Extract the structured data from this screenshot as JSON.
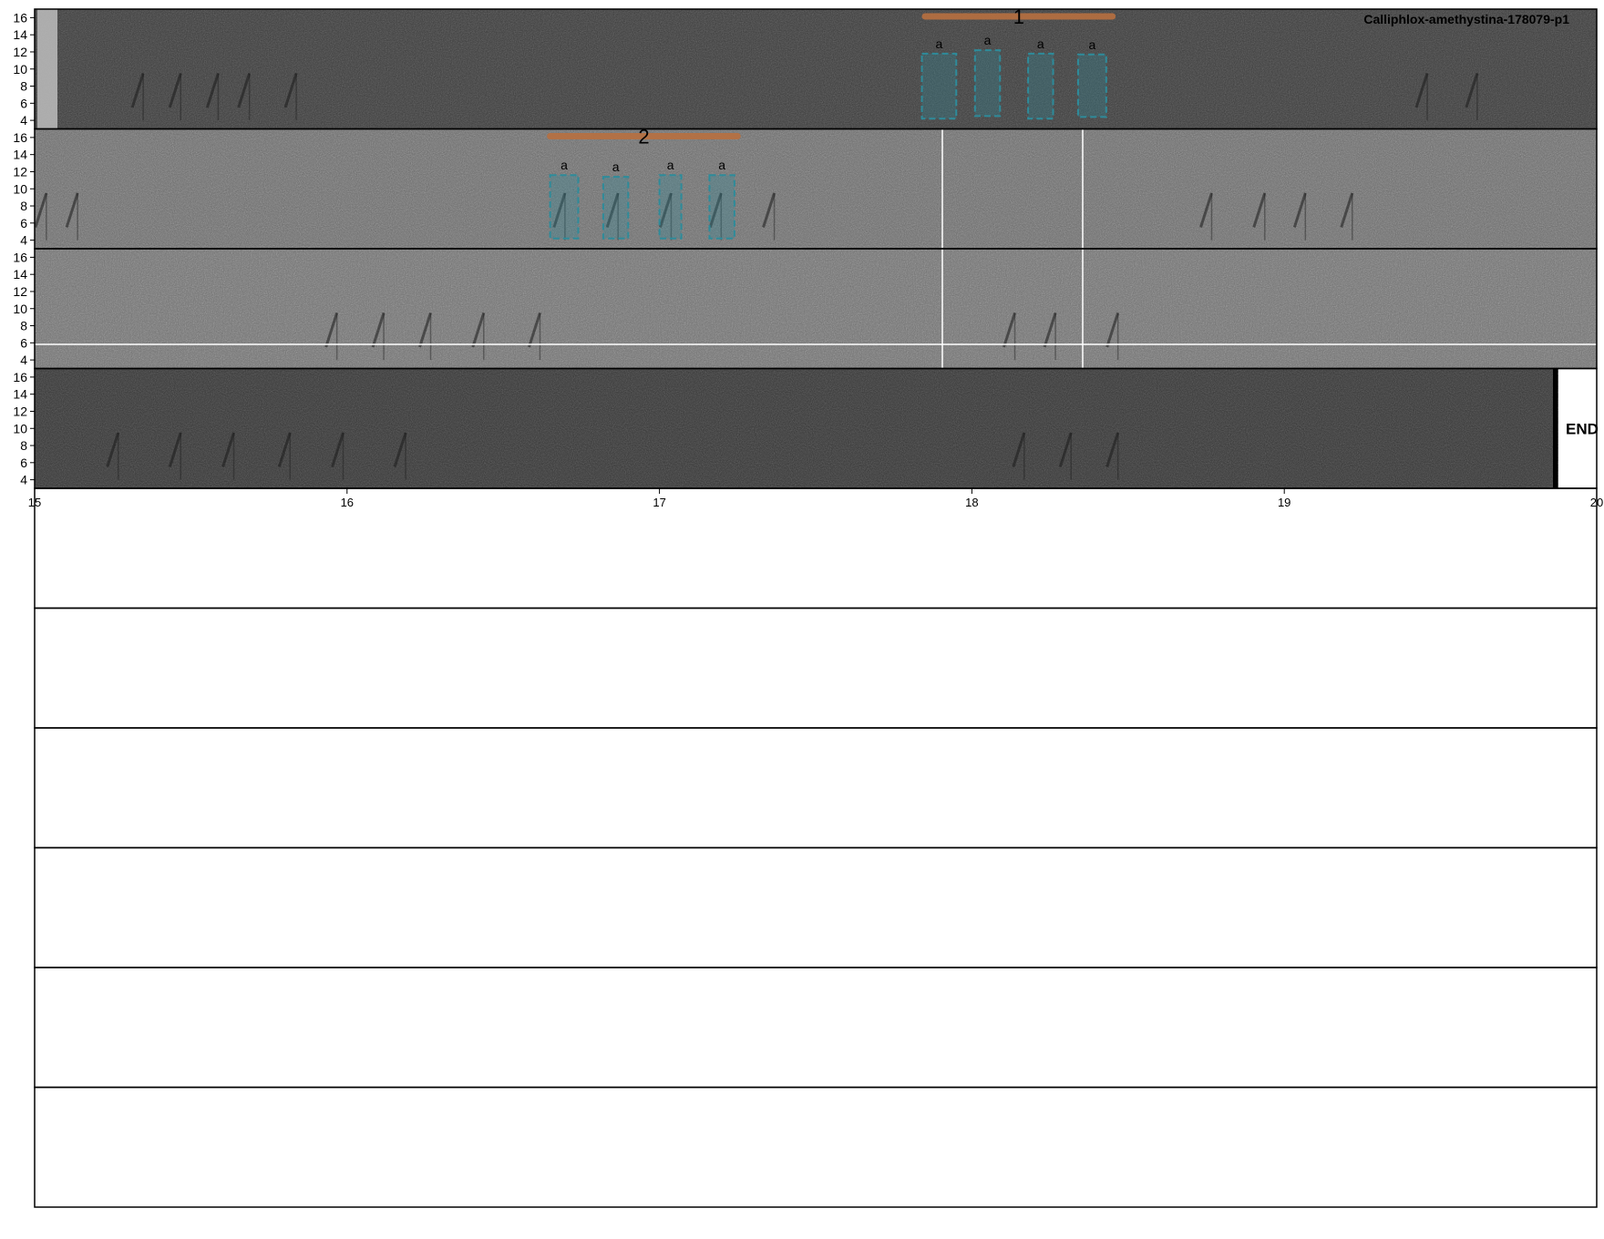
{
  "chart_data": {
    "type": "spectrogram",
    "title": "Calliphlox-amethystina-178079-p1",
    "end_label": "END",
    "xlim": [
      15,
      20
    ],
    "x_ticks": [
      "15",
      "16",
      "17",
      "18",
      "19",
      "20"
    ],
    "ylim": [
      3,
      17
    ],
    "y_ticks": [
      "16",
      "14",
      "12",
      "10",
      "8",
      "6",
      "4"
    ],
    "panel_count": 10,
    "filled_panels": 4,
    "annotations": [
      {
        "label": "1",
        "panel": 1,
        "x_start": 17.85,
        "x_end": 18.45,
        "syllables": [
          {
            "label": "a",
            "x_start": 17.84,
            "x_end": 17.95,
            "y_start": 4.2,
            "y_end": 11.8
          },
          {
            "label": "a",
            "x_start": 18.01,
            "x_end": 18.09,
            "y_start": 4.5,
            "y_end": 12.2
          },
          {
            "label": "a",
            "x_start": 18.18,
            "x_end": 18.26,
            "y_start": 4.2,
            "y_end": 11.8
          },
          {
            "label": "a",
            "x_start": 18.34,
            "x_end": 18.43,
            "y_start": 4.4,
            "y_end": 11.7
          }
        ]
      },
      {
        "label": "2",
        "panel": 2,
        "x_start": 16.65,
        "x_end": 17.25,
        "syllables": [
          {
            "label": "a",
            "x_start": 16.65,
            "x_end": 16.74,
            "y_start": 4.2,
            "y_end": 11.6
          },
          {
            "label": "a",
            "x_start": 16.82,
            "x_end": 16.9,
            "y_start": 4.2,
            "y_end": 11.4
          },
          {
            "label": "a",
            "x_start": 17.0,
            "x_end": 17.07,
            "y_start": 4.2,
            "y_end": 11.6
          },
          {
            "label": "a",
            "x_start": 17.16,
            "x_end": 17.24,
            "y_start": 4.2,
            "y_end": 11.6
          }
        ]
      }
    ],
    "colors": {
      "annotation_bar": "#b87040",
      "syllable_box": "#2e8b9a",
      "frame": "#000000"
    }
  }
}
